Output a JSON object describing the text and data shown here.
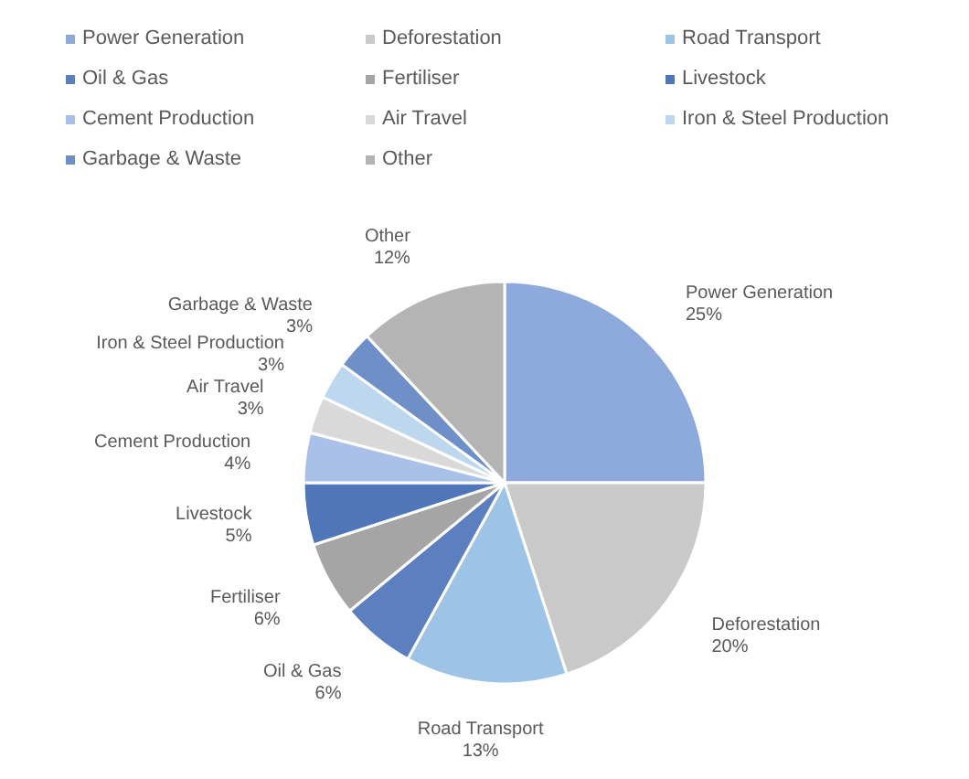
{
  "chart_data": {
    "type": "pie",
    "categories": [
      "Power Generation",
      "Deforestation",
      "Road Transport",
      "Oil & Gas",
      "Fertiliser",
      "Livestock",
      "Cement Production",
      "Air Travel",
      "Iron & Steel Production",
      "Garbage & Waste",
      "Other"
    ],
    "values": [
      25,
      20,
      13,
      6,
      6,
      5,
      4,
      3,
      3,
      3,
      12
    ],
    "colors": [
      "#8ea9db",
      "#c9c9c9",
      "#9dc3e6",
      "#5b7fbf",
      "#a5a5a5",
      "#4f76b8",
      "#a9c0e8",
      "#d9d9d9",
      "#bdd7ee",
      "#6f8fc9",
      "#b4b4b4"
    ],
    "value_labels": [
      "25%",
      "20%",
      "13%",
      "6%",
      "6%",
      "5%",
      "4%",
      "3%",
      "3%",
      "3%",
      "12%"
    ],
    "legend": "top"
  }
}
